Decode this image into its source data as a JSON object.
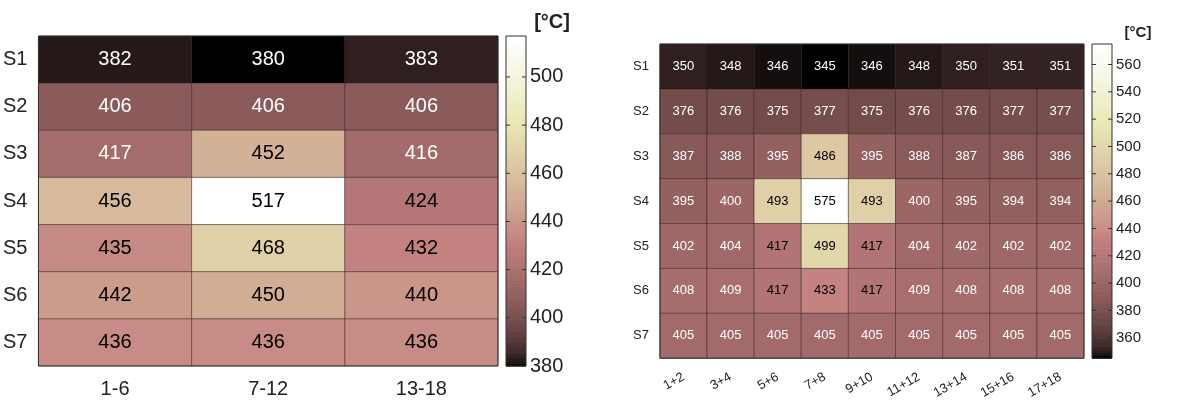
{
  "chart_data": [
    {
      "type": "heatmap",
      "clabel": "[°C]",
      "categories": [
        "1-6",
        "7-12",
        "13-18"
      ],
      "y_categories": [
        "S1",
        "S2",
        "S3",
        "S4",
        "S5",
        "S6",
        "S7"
      ],
      "cells": [
        [
          382,
          380,
          383
        ],
        [
          406,
          406,
          406
        ],
        [
          417,
          452,
          416
        ],
        [
          456,
          517,
          424
        ],
        [
          435,
          468,
          432
        ],
        [
          442,
          450,
          440
        ],
        [
          436,
          436,
          436
        ]
      ],
      "clim": [
        380,
        517
      ],
      "cticks": [
        380,
        400,
        420,
        440,
        460,
        480,
        500
      ],
      "data_labels": true
    },
    {
      "type": "heatmap",
      "clabel": "[°C]",
      "categories": [
        "1+2",
        "3+4",
        "5+6",
        "7+8",
        "9+10",
        "11+12",
        "13+14",
        "15+16",
        "17+18"
      ],
      "y_categories": [
        "S1",
        "S2",
        "S3",
        "S4",
        "S5",
        "S6",
        "S7"
      ],
      "cells": [
        [
          350,
          348,
          346,
          345,
          346,
          348,
          350,
          351,
          351
        ],
        [
          376,
          376,
          375,
          377,
          375,
          376,
          376,
          377,
          377
        ],
        [
          387,
          388,
          395,
          486,
          395,
          388,
          387,
          386,
          386
        ],
        [
          395,
          400,
          493,
          575,
          493,
          400,
          395,
          394,
          394
        ],
        [
          402,
          404,
          417,
          499,
          417,
          404,
          402,
          402,
          402
        ],
        [
          408,
          409,
          417,
          433,
          417,
          409,
          408,
          408,
          408
        ],
        [
          405,
          405,
          405,
          405,
          405,
          405,
          405,
          405,
          405
        ]
      ],
      "clim": [
        345,
        575
      ],
      "cticks": [
        360,
        380,
        400,
        420,
        440,
        460,
        480,
        500,
        520,
        540,
        560
      ],
      "data_labels": true
    }
  ]
}
